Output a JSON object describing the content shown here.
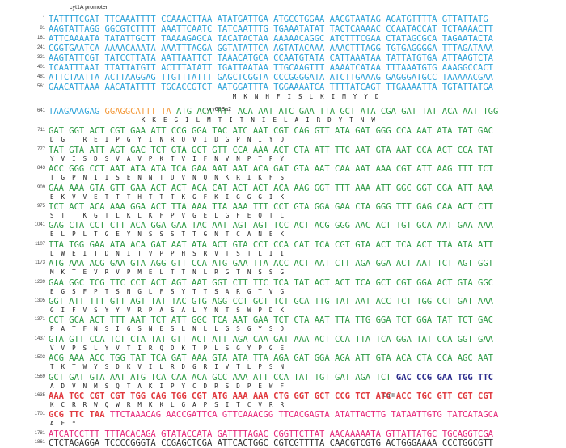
{
  "labels": {
    "promoter": "cyt1A promoter",
    "rbs": "ory60Ba2",
    "bgl": "BglII"
  },
  "colors": {
    "promoter": "#2ea3d8",
    "rbs": "#f39a3c",
    "cds": "#2e9a45",
    "site": "#2b2b8c",
    "tag": "#e0393e",
    "tail": "#e6287a",
    "plain": "#333333",
    "aa": "#222222"
  },
  "lines": [
    {
      "n": "1",
      "seq": "TATTTTCGAT TTCAAATTTT CCAAACTTAA ATATGATTGA ATGCCTGGAA AAGGTAATAG AGATGTTTTA GTTATTATG",
      "c": "promoter"
    },
    {
      "n": "81",
      "seq": "AAGTATTAGG GGCGTCTTTT AAATTCAATC TATCAATTTG TGAAATATAT TACTCAAAAC CCAATACCAT TCTAAAACTT",
      "c": "promoter"
    },
    {
      "n": "161",
      "seq": "ATTCAAAATA TATATTGCTT TAAAAGAGCA TACATACTAA AAAAACAGGC ATCTTTCGAA CTATAGCGCA TAGAATACTA",
      "c": "promoter"
    },
    {
      "n": "241",
      "seq": "CGGTGAATCA AAAACAAATA AAATTTAGGA GGTATATTCA AGTATACAAA AAACTTTAGG TGTGAGGGGA TTTAGATAAA",
      "c": "promoter"
    },
    {
      "n": "321",
      "seq": "AAGTATTCGT TATCCTTATA AATTAATTCT TAAACATGCA CCAATGTATA CATTAAATAA TATTATGTGA ATTAAGTCTA",
      "c": "promoter"
    },
    {
      "n": "401",
      "seq": "TCAATTTAAT TTATTATGTT ACTTTATATT TGATTAATAA TTGCAAGTTT AAAATCATAA TTTAAATGTG AAAGGCCACT",
      "c": "promoter"
    },
    {
      "n": "481",
      "seq": "ATTCTAATTA ACTTAAGGAG TTGTTTATTT GAGCTCGGTA CCCGGGGATA ATCTTGAAAG GAGGGATGCC TAAAAACGAA",
      "c": "promoter"
    },
    {
      "n": "561",
      "seq": "GAACATTAAA AACATATTTT TGCACCGTCT AATGGATTTA TGGAAAATCA TTTTATCAGT TTGAAAATTA TGTATTATGA",
      "c": "promoter"
    },
    {
      "n": "",
      "seq": "                                                  M  K  N  H  F  I  S  L  K  I  M  Y  Y  D",
      "c": "aa"
    },
    {
      "n": "641",
      "seq": "TAAGAAAGAG GGAGGCATTT TA ATG ACA ATT ACA AAT ATC GAA TTA GCT ATA CGA GAT TAT ACA AAT TGG",
      "c": "mix641"
    },
    {
      "n": "",
      "seq": "                         K  K  E  G  I  L  M  T  I  T  N  I  E  L  A  I  R  D  Y  T  N  W",
      "c": "aa"
    },
    {
      "n": "711",
      "seq": "GAT GGT ACT CGT GAA ATT CCG GGA TAC ATC AAT CGT CAG GTT ATA GAT GGG CCA AAT ATA TAT GAC",
      "c": "cds"
    },
    {
      "n": "",
      "seq": "D  G  T  R  E  I  P  G  Y  I  N  R  Q  V  I  D  G  P  N  I  Y  D",
      "c": "aa"
    },
    {
      "n": "777",
      "seq": "TAT GTA ATT AGT GAC TCT GTA GCT GTT CCA AAA ACT GTA ATT TTC AAT GTA AAT CCA ACT CCA TAT",
      "c": "cds"
    },
    {
      "n": "",
      "seq": "Y  V  I  S  D  S  V  A  V  P  K  T  V  I  F  N  V  N  P  T  P  Y",
      "c": "aa"
    },
    {
      "n": "843",
      "seq": "ACC GGG CCT AAT ATA ATA TCA GAA AAT AAT ACA GAT GTA AAT CAA AAT AAA CGT ATT AAG TTT TCT",
      "c": "cds"
    },
    {
      "n": "",
      "seq": "T  G  P  N  I  I  S  E  N  N  T  D  V  N  Q  N  K  R  I  K  F  S",
      "c": "aa"
    },
    {
      "n": "909",
      "seq": "GAA AAA GTA GTT GAA ACT ACT ACA CAT ACT ACT ACA AAG GGT TTT AAA ATT GGC GGT GGA ATT AAA",
      "c": "cds"
    },
    {
      "n": "",
      "seq": "E  K  V  V  E  T  T  T  H  T  T  T  K  G  F  K  I  G  G  G  I  K",
      "c": "aa"
    },
    {
      "n": "975",
      "seq": "TCT ACT ACA AAA GGA ACT TTA AAA TTA AAA TTT CCT GTA GGA GAA CTA GGG TTT GAG CAA ACT CTT",
      "c": "cds"
    },
    {
      "n": "",
      "seq": "S  T  T  K  G  T  L  K  L  K  F  P  V  G  E  L  G  F  E  Q  T  L",
      "c": "aa"
    },
    {
      "n": "1041",
      "seq": "GAG CTA CCT CTT ACA GGA GAA TAC AAT AGT AGT TCC ACT ACG GGG AAC ACT TGT GCA AAT GAA AAA",
      "c": "cds"
    },
    {
      "n": "",
      "seq": "E  L  P  L  T  G  E  Y  N  S  S  S  T  T  G  N  T  C  A  N  E  K",
      "c": "aa"
    },
    {
      "n": "1107",
      "seq": "TTA TGG GAA ATA ACA GAT AAT ATA ACT GTA CCT CCA CAT TCA CGT GTA ACT TCA ACT TTA ATA ATT",
      "c": "cds"
    },
    {
      "n": "",
      "seq": "L  W  E  I  T  D  N  I  T  V  P  P  H  S  R  V  T  S  T  L  I  I",
      "c": "aa"
    },
    {
      "n": "1173",
      "seq": "ATG AAA ACG GAA GTA AGG GTT CCA ATG GAA TTA ACC ACT AAT CTT AGA GGA ACT AAT TCT AGT GGT",
      "c": "cds"
    },
    {
      "n": "",
      "seq": "M  K  T  E  V  R  V  P  M  E  L  T  T  N  L  R  G  T  N  S  S  G",
      "c": "aa"
    },
    {
      "n": "1239",
      "seq": "GAA GGC TCG TTC CCT ACT AGT AAT GGT CTT TTC TCA TAT ACT ACT TCA GCT CGT GGA ACT GTA GGC",
      "c": "cds"
    },
    {
      "n": "",
      "seq": "E  G  S  F  P  T  S  N  G  L  F  S  Y  T  T  S  A  R  G  T  V  G",
      "c": "aa"
    },
    {
      "n": "1305",
      "seq": "GGT ATT TTT GTT AGT TAT TAC GTG AGG CCT GCT TCT GCA TTG TAT AAT ACC TCT TGG CCT GAT AAA",
      "c": "cds"
    },
    {
      "n": "",
      "seq": "G  I  F  V  S  Y  Y  V  R  P  A  S  A  L  Y  N  T  S  W  P  D  K",
      "c": "aa"
    },
    {
      "n": "1371",
      "seq": "CCT GCA ACT TTT AAT TCT ATT GGC TCA AAT GAA TCT CTA AAT TTA TTG GGA TCT GGA TAT TCT GAC",
      "c": "cds"
    },
    {
      "n": "",
      "seq": "P  A  T  F  N  S  I  G  S  N  E  S  L  N  L  L  G  S  G  Y  S  D",
      "c": "aa"
    },
    {
      "n": "1437",
      "seq": "GTA GTT CCA TCT CTA TAT GTT ACT ATT AGA CAA GAT AAA ACT CCA TTA TCA GGA TAT CCA GGT GAA",
      "c": "cds"
    },
    {
      "n": "",
      "seq": "V  V  P  S  L  Y  V  T  I  R  Q  D  K  T  P  L  S  G  Y  P  G  E",
      "c": "aa"
    },
    {
      "n": "1503",
      "seq": "ACG AAA ACC TGG TAT TCA GAT AAA GTA ATA TTA AGA GAT GGA AGA ATT GTA ACA CTA CCA AGC AAT",
      "c": "cds"
    },
    {
      "n": "",
      "seq": "T  K  T  W  Y  S  D  K  V  I  L  R  D  G  R  I  V  T  L  P  S  N",
      "c": "aa"
    },
    {
      "n": "1569",
      "seq": "GCT GAT GTA AAT ATG TCA CAA ACA GCC AAA ATT CCA TAT TGT GAT AGA TCT GAC CCG GAA TGG TTC",
      "c": "mix1569"
    },
    {
      "n": "",
      "seq": "A  D  V  N  M  S  Q  T  A  K  I  P  Y  C  D  R  S  D  P  E  W  F",
      "c": "aa"
    },
    {
      "n": "1635",
      "seq": "AAA TGC CGT CGT TGG CAG TGG CGT ATG AAA AAA CTG GGT GCT CCG TCT ATC ACC TGC GTT CGT CGT",
      "c": "tag"
    },
    {
      "n": "",
      "seq": "K  C  R  R  W  Q  W  R  M  K  K  L  G  A  P  S  I  T  C  V  R  R",
      "c": "aa"
    },
    {
      "n": "1701",
      "seq": "GCG TTC TAA TTCTAAACAG AACCGATTCA GTTCAAACGG TTCACGAGTA ATATTACTTG TATAATTGTG TATCATAGCA",
      "c": "mix1701"
    },
    {
      "n": "",
      "seq": "A  F  *",
      "c": "aa"
    },
    {
      "n": "1781",
      "seq": "ATCATCCTTT TTTACACAGA GTATACCATA GATTTTAGAC CGGTTCTTAT AACAAAAATA GTTATTATGC TGCAGGTCGA",
      "c": "tail"
    },
    {
      "n": "1861",
      "seq": "CTCTAGAGGA TCCCCGGGTA CCGAGCTCGA ATTCACTGGC CGTCGTTTTA CAACGTCGTG ACTGGGAAAA CCCTGGCGTT",
      "c": "plain"
    }
  ]
}
